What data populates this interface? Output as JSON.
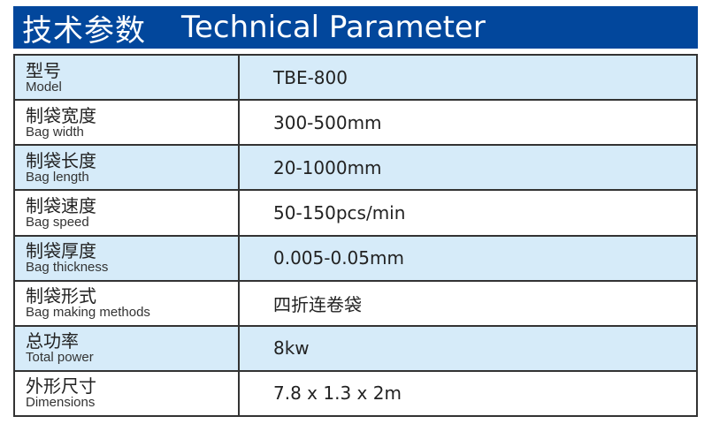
{
  "header": {
    "title_zh": "技术参数",
    "title_en": "Technical Parameter",
    "color": "#02479c"
  },
  "rows": [
    {
      "zh": "型号",
      "en": "Model",
      "value": "TBE-800"
    },
    {
      "zh": "制袋宽度",
      "en": "Bag width",
      "value": "300-500mm"
    },
    {
      "zh": "制袋长度",
      "en": "Bag length",
      "value": "20-1000mm"
    },
    {
      "zh": "制袋速度",
      "en": "Bag speed",
      "value": "50-150pcs/min"
    },
    {
      "zh": "制袋厚度",
      "en": "Bag thickness",
      "value": "0.005-0.05mm"
    },
    {
      "zh": "制袋形式",
      "en": "Bag making methods",
      "value": "四折连卷袋"
    },
    {
      "zh": "总功率",
      "en": "Total power",
      "value": "8kw"
    },
    {
      "zh": "外形尺寸",
      "en": "Dimensions",
      "value": "7.8 x 1.3 x 2m"
    }
  ],
  "colors": {
    "row_alt": "#d6ebf9",
    "row": "#ffffff"
  }
}
